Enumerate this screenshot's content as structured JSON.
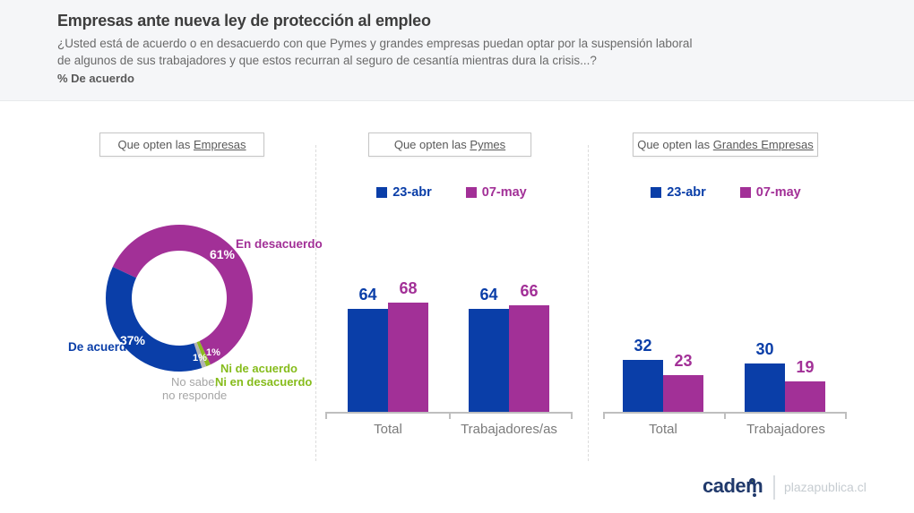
{
  "header": {
    "title": "Empresas ante nueva ley de protección al empleo",
    "question_line1": "¿Usted está de acuerdo o en desacuerdo con que Pymes y grandes empresas puedan optar por la suspensión laboral",
    "question_line2": "de algunos de sus trabajadores y que estos recurran al seguro de cesantía mientras dura la crisis...?",
    "metric_label": "% De acuerdo"
  },
  "panels": {
    "empresas": {
      "title_prefix": "Que opten las ",
      "title_emph": "Empresas"
    },
    "pymes": {
      "title_prefix": "Que opten las ",
      "title_emph": "Pymes"
    },
    "grandes": {
      "title_prefix": "Que opten las ",
      "title_emph": "Grandes Empresas"
    }
  },
  "donut_labels": {
    "en_desacuerdo": "En desacuerdo",
    "en_desacuerdo_pct": "61%",
    "de_acuerdo": "De acuerdo",
    "de_acuerdo_pct": "37%",
    "ni_pct": "1%",
    "no_sabe_pct": "1%",
    "ni_line1": "Ni de acuerdo",
    "ni_line2": "Ni en desacuerdo",
    "no_sabe_line1": "No sabe,",
    "no_sabe_line2": "no responde"
  },
  "colors": {
    "blue": "#0A3EA8",
    "magenta": "#A23097",
    "green": "#8CBB1E",
    "gray_segment": "#B3B3B3",
    "header_bg": "#F5F6F8",
    "axis": "#BFBFBF",
    "brand_navy": "#20396B",
    "brand_green": "#83B51B"
  },
  "footer": {
    "brand": "cadem",
    "site": "plazapublica.cl"
  },
  "chart_data": [
    {
      "type": "pie",
      "subtype": "donut",
      "title": "Que opten las Empresas",
      "start_angle_deg": 295.2,
      "direction": "clockwise",
      "segments": [
        {
          "label": "En desacuerdo",
          "value": 61,
          "color": "#A23097"
        },
        {
          "label": "Ni de acuerdo Ni en desacuerdo",
          "value": 1,
          "color": "#8CBB1E"
        },
        {
          "label": "No sabe, no responde",
          "value": 1,
          "color": "#B3B3B3"
        },
        {
          "label": "De acuerdo",
          "value": 37,
          "color": "#0A3EA8"
        }
      ]
    },
    {
      "type": "bar",
      "title": "Que opten las Pymes",
      "categories": [
        "Total",
        "Trabajadores/as"
      ],
      "series": [
        {
          "name": "23-abr",
          "color": "#0A3EA8",
          "values": [
            64,
            64
          ]
        },
        {
          "name": "07-may",
          "color": "#A23097",
          "values": [
            68,
            66
          ]
        }
      ],
      "ylim": [
        0,
        100
      ],
      "legend_position": "top",
      "grid": false
    },
    {
      "type": "bar",
      "title": "Que opten las Grandes Empresas",
      "categories": [
        "Total",
        "Trabajadores"
      ],
      "series": [
        {
          "name": "23-abr",
          "color": "#0A3EA8",
          "values": [
            32,
            30
          ]
        },
        {
          "name": "07-may",
          "color": "#A23097",
          "values": [
            23,
            19
          ]
        }
      ],
      "ylim": [
        0,
        100
      ],
      "legend_position": "top",
      "grid": false
    }
  ]
}
